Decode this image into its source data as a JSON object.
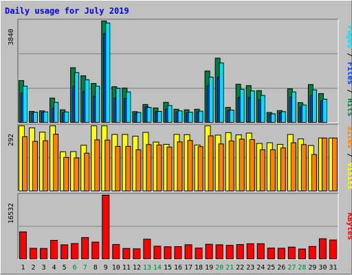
{
  "chart_data": {
    "type": "bar",
    "title": "Daily usage for July 2019",
    "colors": {
      "background": "#c0c0c0",
      "plot": "#c0c0c0",
      "title": "#0000ff",
      "hits": "#008040",
      "files": "#0040ff",
      "pages": "#00e0ff",
      "visits": "#ffff00",
      "sites": "#ff8000",
      "kbytes": "#ff0000",
      "weekend_label": "#008040",
      "weekday_label": "#000000"
    },
    "categories": [
      "1",
      "2",
      "3",
      "4",
      "5",
      "6",
      "7",
      "8",
      "9",
      "10",
      "11",
      "12",
      "13",
      "14",
      "15",
      "16",
      "17",
      "18",
      "19",
      "20",
      "21",
      "22",
      "23",
      "24",
      "25",
      "26",
      "27",
      "28",
      "29",
      "30",
      "31"
    ],
    "weekend_days": [
      "6",
      "7",
      "13",
      "14",
      "20",
      "21",
      "27",
      "28"
    ],
    "panels": [
      {
        "id": "top",
        "max_label": "3840",
        "ylim": [
          0,
          3840
        ],
        "series": [
          {
            "name": "Hits",
            "values": [
              1600,
              440,
              460,
              940,
              500,
              2080,
              1780,
              1490,
              3840,
              1370,
              1320,
              430,
              700,
              570,
              780,
              520,
              500,
              520,
              1960,
              2440,
              590,
              1460,
              1410,
              1220,
              400,
              470,
              1290,
              770,
              1450,
              1110,
              0
            ]
          },
          {
            "name": "Files",
            "values": [
              1130,
              370,
              400,
              560,
              380,
              1380,
              1190,
              1000,
              3360,
              940,
              930,
              360,
              610,
              430,
              530,
              420,
              390,
              420,
              1410,
              1730,
              470,
              960,
              960,
              880,
              330,
              400,
              980,
              620,
              1040,
              840,
              0
            ]
          },
          {
            "name": "Pages",
            "values": [
              1390,
              410,
              420,
              780,
              420,
              1900,
              1630,
              1390,
              3760,
              1310,
              1170,
              400,
              590,
              440,
              660,
              460,
              410,
              450,
              1730,
              2260,
              490,
              1270,
              1210,
              1040,
              350,
              430,
              1170,
              680,
              1250,
              900,
              0
            ]
          }
        ],
        "side_labels": [
          {
            "text": "Pages",
            "color": "#00e0ff"
          },
          {
            "text": " / ",
            "color": "#000000"
          },
          {
            "text": "Files",
            "color": "#0040ff"
          },
          {
            "text": " / ",
            "color": "#000000"
          },
          {
            "text": "Hits",
            "color": "#008040"
          }
        ]
      },
      {
        "id": "mid",
        "max_label": "292",
        "ylim": [
          0,
          292
        ],
        "series": [
          {
            "name": "Visits",
            "values": [
              292,
              283,
              264,
              292,
              177,
              178,
              206,
              292,
              292,
              254,
              254,
              246,
              263,
              220,
              210,
              254,
              253,
              207,
              292,
              251,
              262,
              252,
              260,
              214,
              217,
              210,
              254,
              234,
              205,
              238,
              238
            ]
          },
          {
            "name": "Sites",
            "values": [
              244,
              223,
              226,
              255,
              152,
              150,
              171,
              230,
              229,
              201,
              201,
              186,
              209,
              207,
              198,
              221,
              227,
              200,
              248,
              212,
              225,
              233,
              231,
              186,
              186,
              194,
              217,
              209,
              165,
              238,
              238
            ]
          }
        ],
        "side_labels": [
          {
            "text": "Sites",
            "color": "#ff8000"
          },
          {
            "text": " / ",
            "color": "#000000"
          },
          {
            "text": "Visits",
            "color": "#ffff00"
          }
        ]
      },
      {
        "id": "bottom",
        "max_label": "16532",
        "ylim": [
          0,
          16532
        ],
        "series": [
          {
            "name": "KBytes",
            "values": [
              7110,
              2890,
              2860,
              4930,
              3790,
              4120,
              5650,
              4480,
              16532,
              3880,
              2860,
              2770,
              5230,
              3430,
              3290,
              3330,
              3820,
              2960,
              3930,
              3800,
              3650,
              3860,
              4070,
              4080,
              2950,
              2910,
              3210,
              2720,
              3370,
              5350,
              5020
            ]
          }
        ],
        "side_labels": [
          {
            "text": "KBytes",
            "color": "#ff0000"
          }
        ]
      }
    ]
  }
}
